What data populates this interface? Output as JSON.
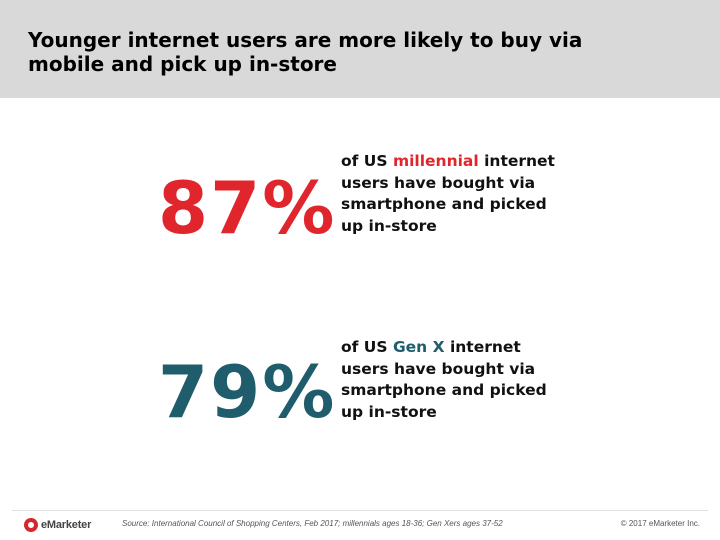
{
  "header": {
    "title": "Younger internet users are more likely to buy via\nmobile and pick up in-store"
  },
  "colors": {
    "header_bg": "#d9d9d9",
    "millennial_red": "#e0262c",
    "genx_teal": "#1f5d6c",
    "text": "#111111"
  },
  "stats": [
    {
      "value": "87%",
      "prefix": "of US ",
      "group": "millennial",
      "suffix": " internet users have bought via smartphone and picked up in-store"
    },
    {
      "value": "79%",
      "prefix": "of US ",
      "group": "Gen X",
      "suffix": " internet users have bought via smartphone and picked up in-store"
    }
  ],
  "footer": {
    "logo_text": "eMarketer",
    "logo_icon": "emarketer-logo-icon",
    "source": "Source: International Council of Shopping Centers, Feb 2017; millennials ages 18-36; Gen Xers ages 37-52",
    "copyright": "© 2017 eMarketer Inc."
  }
}
